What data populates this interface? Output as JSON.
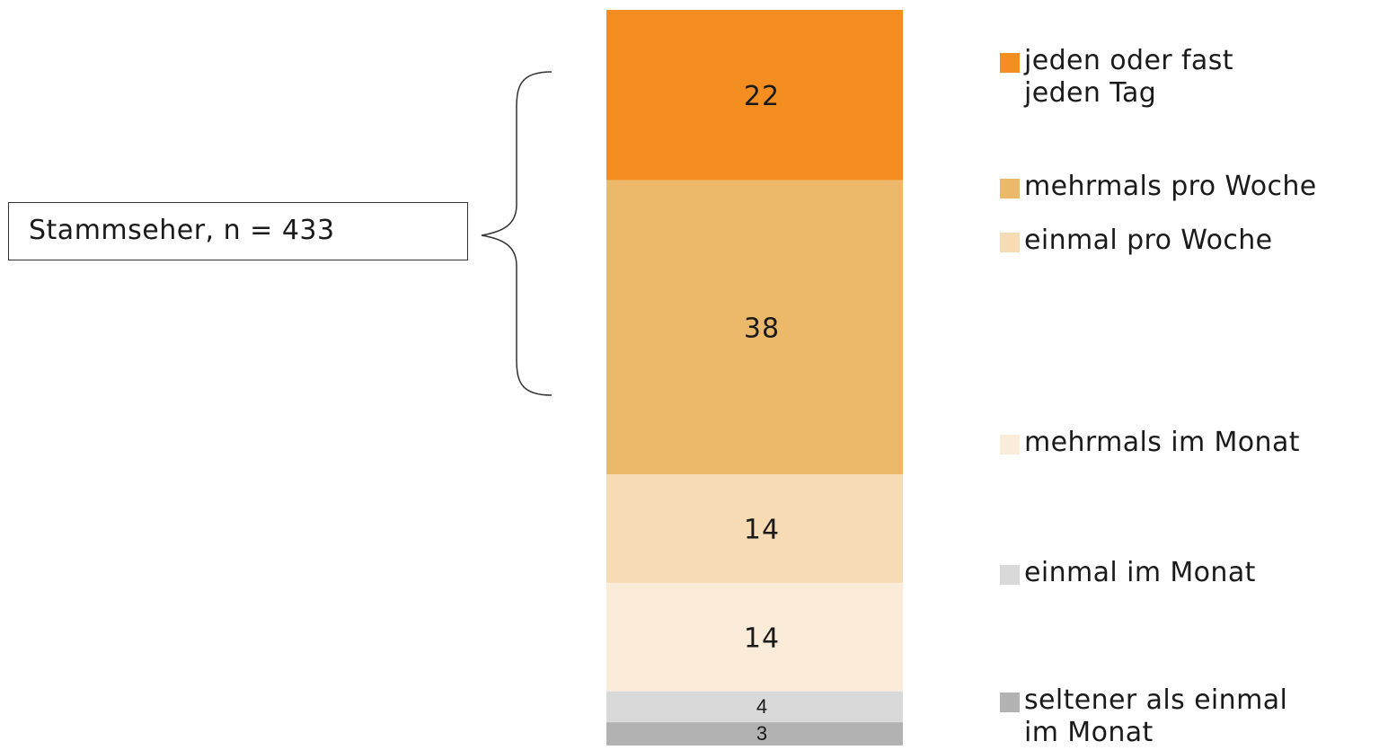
{
  "chart_data": {
    "type": "bar",
    "stacked": true,
    "categories": [
      "Stammseher, n = 433"
    ],
    "series": [
      {
        "name": "jeden oder fast jeden Tag",
        "values": [
          22
        ],
        "color": "#F48E20"
      },
      {
        "name": "mehrmals pro Woche",
        "values": [
          38
        ],
        "color": "#ECB86A"
      },
      {
        "name": "einmal pro Woche",
        "values": [
          14
        ],
        "color": "#F6DBB5"
      },
      {
        "name": "mehrmals im Monat",
        "values": [
          14
        ],
        "color": "#FBECDA"
      },
      {
        "name": "einmal im Monat",
        "values": [
          4
        ],
        "color": "#D9D9D9"
      },
      {
        "name": "seltener als einmal im Monat",
        "values": [
          3
        ],
        "color": "#B2B2B2"
      }
    ],
    "data_labels": [
      "22",
      "38",
      "14",
      "14",
      "4",
      "3"
    ],
    "annotation": "Stammseher, n = 433",
    "legend_position": "right",
    "grid": false
  }
}
